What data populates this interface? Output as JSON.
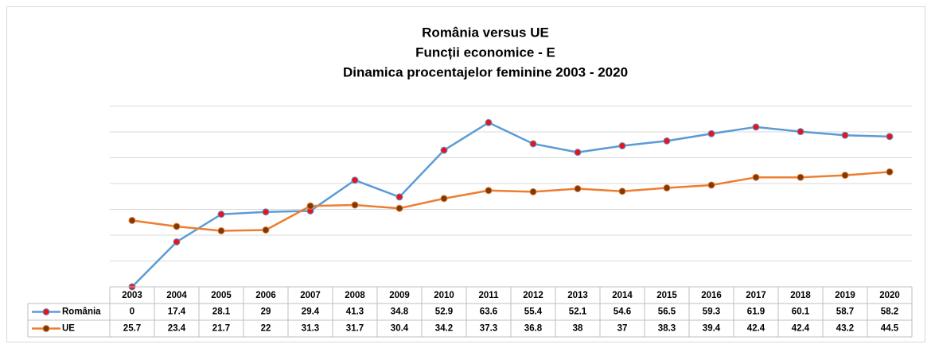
{
  "chart_data": {
    "type": "line",
    "title": [
      "România versus UE",
      "Funcții economice - E",
      "Dinamica procentajelor feminine 2003 - 2020"
    ],
    "categories": [
      "2003",
      "2004",
      "2005",
      "2006",
      "2007",
      "2008",
      "2009",
      "2010",
      "2011",
      "2012",
      "2013",
      "2014",
      "2015",
      "2016",
      "2017",
      "2018",
      "2019",
      "2020"
    ],
    "series": [
      {
        "name": "România",
        "color": "#5b9bd5",
        "marker_color": "#e8141c",
        "values": [
          0,
          17.4,
          28.1,
          29,
          29.4,
          41.3,
          34.8,
          52.9,
          63.6,
          55.4,
          52.1,
          54.6,
          56.5,
          59.3,
          61.9,
          60.1,
          58.7,
          58.2
        ]
      },
      {
        "name": "UE",
        "color": "#ed7d31",
        "marker_color": "#7a3a0a",
        "values": [
          25.7,
          23.4,
          21.7,
          22,
          31.3,
          31.7,
          30.4,
          34.2,
          37.3,
          36.8,
          38,
          37,
          38.3,
          39.4,
          42.4,
          42.4,
          43.2,
          44.5
        ]
      }
    ],
    "ylim": [
      0,
      70
    ],
    "yticks": [
      0,
      10,
      20,
      30,
      40,
      50,
      60,
      70
    ],
    "grid": true,
    "data_table": true
  }
}
